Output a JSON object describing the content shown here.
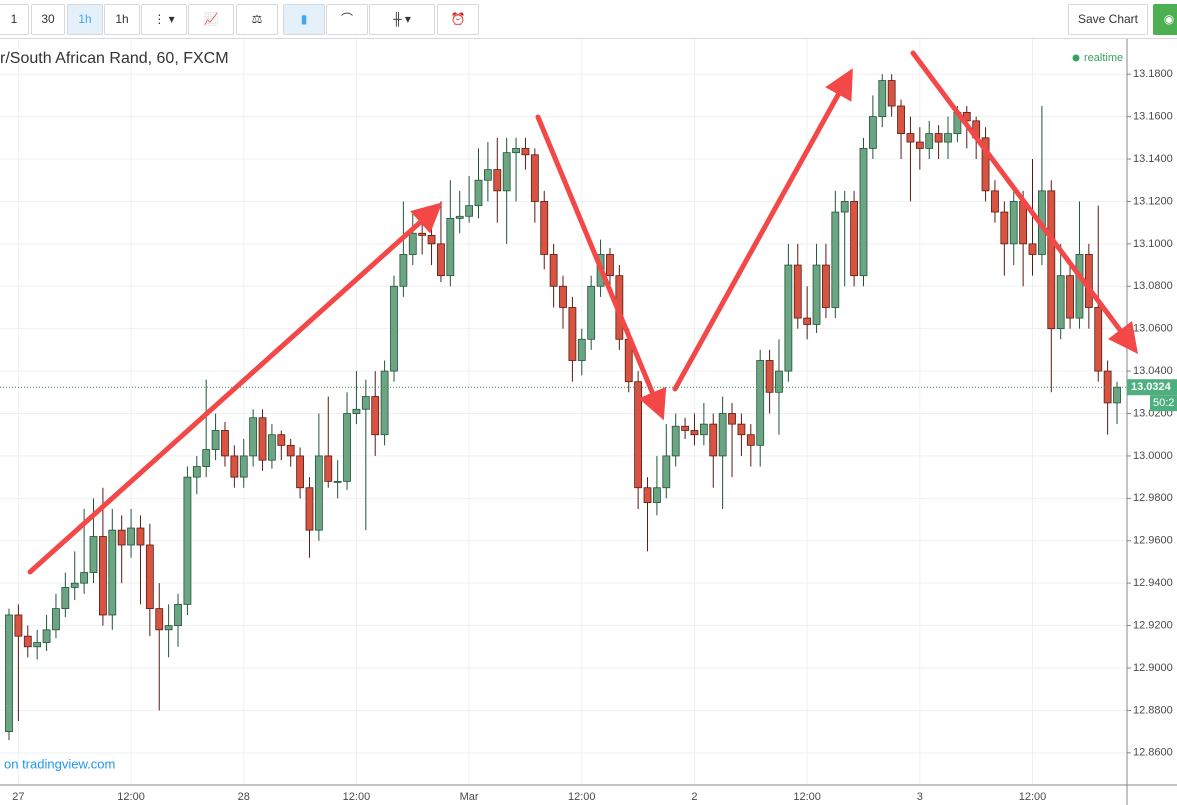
{
  "toolbar": {
    "buttons": [
      "1",
      "30",
      "1h",
      "1h"
    ],
    "save": "Save Chart"
  },
  "chart_data": {
    "type": "candlestick",
    "title": "r/South African Rand, 60, FXCM",
    "status": "realtime",
    "watermark": "on tradingview.com",
    "countdown": "50:2",
    "up_color": "#6ba583",
    "down_color": "#d75442",
    "ylim": [
      12.8453,
      13.1966
    ],
    "yticks": [
      {
        "value": 12.86,
        "label": "12.8600"
      },
      {
        "value": 12.88,
        "label": "12.8800"
      },
      {
        "value": 12.9,
        "label": "12.9000"
      },
      {
        "value": 12.92,
        "label": "12.9200"
      },
      {
        "value": 12.94,
        "label": "12.9400"
      },
      {
        "value": 12.96,
        "label": "12.9600"
      },
      {
        "value": 12.98,
        "label": "12.9800"
      },
      {
        "value": 13.0,
        "label": "13.0000"
      },
      {
        "value": 13.02,
        "label": "13.0200"
      },
      {
        "value": 13.04,
        "label": "13.0400"
      },
      {
        "value": 13.06,
        "label": "13.0600"
      },
      {
        "value": 13.08,
        "label": "13.0800"
      },
      {
        "value": 13.1,
        "label": "13.1000"
      },
      {
        "value": 13.12,
        "label": "13.1200"
      },
      {
        "value": 13.14,
        "label": "13.1400"
      },
      {
        "value": 13.16,
        "label": "13.1600"
      },
      {
        "value": 13.18,
        "label": "13.1800"
      }
    ],
    "grid": true,
    "categories": [
      null,
      "27",
      null,
      null,
      null,
      null,
      null,
      null,
      null,
      null,
      null,
      null,
      null,
      "12:00",
      null,
      null,
      null,
      null,
      null,
      null,
      null,
      null,
      null,
      null,
      null,
      "28",
      null,
      null,
      null,
      null,
      null,
      null,
      null,
      null,
      null,
      null,
      null,
      "12:00",
      null,
      null,
      null,
      null,
      null,
      null,
      null,
      null,
      null,
      null,
      null,
      "Mar",
      null,
      null,
      null,
      null,
      null,
      null,
      null,
      null,
      null,
      null,
      null,
      "12:00",
      null,
      null,
      null,
      null,
      null,
      null,
      null,
      null,
      null,
      null,
      null,
      "2",
      null,
      null,
      null,
      null,
      null,
      null,
      null,
      null,
      null,
      null,
      null,
      "12:00",
      null,
      null,
      null,
      null,
      null,
      null,
      null,
      null,
      null,
      null,
      null,
      "3",
      null,
      null,
      null,
      null,
      null,
      null,
      null,
      null,
      null,
      null,
      null,
      "12:00",
      null,
      null,
      null,
      null,
      null,
      null,
      null,
      null,
      null,
      null
    ],
    "ohlc": [
      [
        12.87,
        12.928,
        12.866,
        12.925
      ],
      [
        12.925,
        12.93,
        12.875,
        12.915
      ],
      [
        12.915,
        12.92,
        12.905,
        12.91
      ],
      [
        12.91,
        12.918,
        12.904,
        12.912
      ],
      [
        12.912,
        12.925,
        12.908,
        12.918
      ],
      [
        12.918,
        12.935,
        12.914,
        12.928
      ],
      [
        12.928,
        12.945,
        12.924,
        12.938
      ],
      [
        12.938,
        12.955,
        12.932,
        12.94
      ],
      [
        12.94,
        12.975,
        12.935,
        12.945
      ],
      [
        12.945,
        12.98,
        12.94,
        12.962
      ],
      [
        12.962,
        12.985,
        12.92,
        12.925
      ],
      [
        12.925,
        12.975,
        12.918,
        12.965
      ],
      [
        12.965,
        12.972,
        12.94,
        12.958
      ],
      [
        12.958,
        12.975,
        12.952,
        12.966
      ],
      [
        12.966,
        12.972,
        12.93,
        12.958
      ],
      [
        12.958,
        12.968,
        12.915,
        12.928
      ],
      [
        12.928,
        12.94,
        12.88,
        12.918
      ],
      [
        12.918,
        12.93,
        12.905,
        12.92
      ],
      [
        12.92,
        12.935,
        12.91,
        12.93
      ],
      [
        12.93,
        12.995,
        12.925,
        12.99
      ],
      [
        12.99,
        13.0,
        12.982,
        12.995
      ],
      [
        12.995,
        13.036,
        12.99,
        13.003
      ],
      [
        13.003,
        13.02,
        12.998,
        13.012
      ],
      [
        13.012,
        13.016,
        12.995,
        13.0
      ],
      [
        13.0,
        13.005,
        12.985,
        12.99
      ],
      [
        12.99,
        13.008,
        12.985,
        13.0
      ],
      [
        13.0,
        13.022,
        12.995,
        13.018
      ],
      [
        13.018,
        13.022,
        12.993,
        12.998
      ],
      [
        12.998,
        13.015,
        12.994,
        13.01
      ],
      [
        13.01,
        13.012,
        12.998,
        13.005
      ],
      [
        13.005,
        13.008,
        12.995,
        13.0
      ],
      [
        13.0,
        13.004,
        12.98,
        12.985
      ],
      [
        12.985,
        12.99,
        12.952,
        12.965
      ],
      [
        12.965,
        13.02,
        12.96,
        13.0
      ],
      [
        13.0,
        13.028,
        12.985,
        12.988
      ],
      [
        12.988,
        12.998,
        12.98,
        12.988
      ],
      [
        12.988,
        13.03,
        12.984,
        13.02
      ],
      [
        13.02,
        13.04,
        13.015,
        13.022
      ],
      [
        13.022,
        13.036,
        12.965,
        13.028
      ],
      [
        13.028,
        13.04,
        13.0,
        13.01
      ],
      [
        13.01,
        13.045,
        13.005,
        13.04
      ],
      [
        13.04,
        13.085,
        13.035,
        13.08
      ],
      [
        13.08,
        13.12,
        13.075,
        13.095
      ],
      [
        13.095,
        13.115,
        13.09,
        13.105
      ],
      [
        13.105,
        13.11,
        13.095,
        13.104
      ],
      [
        13.104,
        13.118,
        13.09,
        13.1
      ],
      [
        13.1,
        13.12,
        13.082,
        13.085
      ],
      [
        13.085,
        13.13,
        13.08,
        13.112
      ],
      [
        13.112,
        13.125,
        13.105,
        13.113
      ],
      [
        13.113,
        13.132,
        13.11,
        13.118
      ],
      [
        13.118,
        13.145,
        13.112,
        13.13
      ],
      [
        13.13,
        13.148,
        13.12,
        13.135
      ],
      [
        13.135,
        13.15,
        13.11,
        13.125
      ],
      [
        13.125,
        13.15,
        13.1,
        13.143
      ],
      [
        13.143,
        13.15,
        13.12,
        13.145
      ],
      [
        13.145,
        13.15,
        13.135,
        13.142
      ],
      [
        13.142,
        13.145,
        13.11,
        13.12
      ],
      [
        13.12,
        13.125,
        13.088,
        13.095
      ],
      [
        13.095,
        13.1,
        13.07,
        13.08
      ],
      [
        13.08,
        13.085,
        13.06,
        13.07
      ],
      [
        13.07,
        13.075,
        13.035,
        13.045
      ],
      [
        13.045,
        13.06,
        13.038,
        13.055
      ],
      [
        13.055,
        13.085,
        13.05,
        13.08
      ],
      [
        13.08,
        13.102,
        13.075,
        13.095
      ],
      [
        13.095,
        13.098,
        13.08,
        13.085
      ],
      [
        13.085,
        13.09,
        13.05,
        13.055
      ],
      [
        13.055,
        13.06,
        13.03,
        13.035
      ],
      [
        13.035,
        13.04,
        12.975,
        12.985
      ],
      [
        12.985,
        12.99,
        12.955,
        12.978
      ],
      [
        12.978,
        13.0,
        12.972,
        12.985
      ],
      [
        12.985,
        13.015,
        12.98,
        13.0
      ],
      [
        13.0,
        13.02,
        12.995,
        13.014
      ],
      [
        13.014,
        13.018,
        13.008,
        13.012
      ],
      [
        13.012,
        13.02,
        13.005,
        13.01
      ],
      [
        13.01,
        13.025,
        13.005,
        13.015
      ],
      [
        13.015,
        13.02,
        12.985,
        13.0
      ],
      [
        13.0,
        13.028,
        12.975,
        13.02
      ],
      [
        13.02,
        13.025,
        12.99,
        13.015
      ],
      [
        13.015,
        13.02,
        13.0,
        13.01
      ],
      [
        13.01,
        13.015,
        12.995,
        13.005
      ],
      [
        13.005,
        13.05,
        12.995,
        13.045
      ],
      [
        13.045,
        13.05,
        13.02,
        13.03
      ],
      [
        13.03,
        13.055,
        13.01,
        13.04
      ],
      [
        13.04,
        13.1,
        13.035,
        13.09
      ],
      [
        13.09,
        13.1,
        13.06,
        13.065
      ],
      [
        13.065,
        13.08,
        13.055,
        13.062
      ],
      [
        13.062,
        13.1,
        13.058,
        13.09
      ],
      [
        13.09,
        13.1,
        13.065,
        13.07
      ],
      [
        13.07,
        13.125,
        13.065,
        13.115
      ],
      [
        13.115,
        13.125,
        13.08,
        13.12
      ],
      [
        13.12,
        13.125,
        13.08,
        13.085
      ],
      [
        13.085,
        13.15,
        13.08,
        13.145
      ],
      [
        13.145,
        13.17,
        13.14,
        13.16
      ],
      [
        13.16,
        13.18,
        13.155,
        13.177
      ],
      [
        13.177,
        13.18,
        13.16,
        13.165
      ],
      [
        13.165,
        13.168,
        13.14,
        13.152
      ],
      [
        13.152,
        13.16,
        13.12,
        13.148
      ],
      [
        13.148,
        13.155,
        13.135,
        13.145
      ],
      [
        13.145,
        13.158,
        13.14,
        13.152
      ],
      [
        13.152,
        13.156,
        13.14,
        13.148
      ],
      [
        13.148,
        13.16,
        13.14,
        13.152
      ],
      [
        13.152,
        13.165,
        13.148,
        13.162
      ],
      [
        13.162,
        13.165,
        13.145,
        13.158
      ],
      [
        13.158,
        13.16,
        13.14,
        13.15
      ],
      [
        13.15,
        13.155,
        13.12,
        13.125
      ],
      [
        13.125,
        13.13,
        13.11,
        13.115
      ],
      [
        13.115,
        13.12,
        13.085,
        13.1
      ],
      [
        13.1,
        13.128,
        13.09,
        13.12
      ],
      [
        13.12,
        13.125,
        13.08,
        13.1
      ],
      [
        13.1,
        13.14,
        13.085,
        13.095
      ],
      [
        13.095,
        13.165,
        13.09,
        13.125
      ],
      [
        13.125,
        13.13,
        13.03,
        13.06
      ],
      [
        13.06,
        13.1,
        13.055,
        13.085
      ],
      [
        13.085,
        13.092,
        13.06,
        13.065
      ],
      [
        13.065,
        13.12,
        13.06,
        13.095
      ],
      [
        13.095,
        13.1,
        13.06,
        13.07
      ],
      [
        13.07,
        13.118,
        13.035,
        13.04
      ],
      [
        13.04,
        13.045,
        13.01,
        13.025
      ],
      [
        13.025,
        13.035,
        13.015,
        13.0324
      ]
    ]
  }
}
